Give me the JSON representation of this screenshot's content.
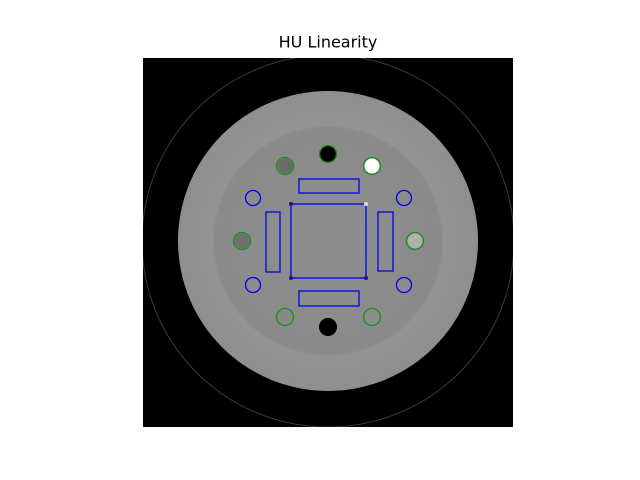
{
  "title": "HU Linearity"
}
